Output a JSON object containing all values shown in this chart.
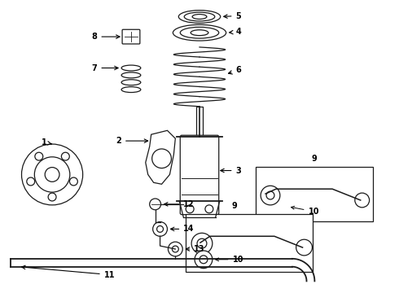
{
  "bg_color": "#ffffff",
  "line_color": "#1a1a1a",
  "label_color": "#000000",
  "figsize": [
    4.9,
    3.6
  ],
  "dpi": 100
}
